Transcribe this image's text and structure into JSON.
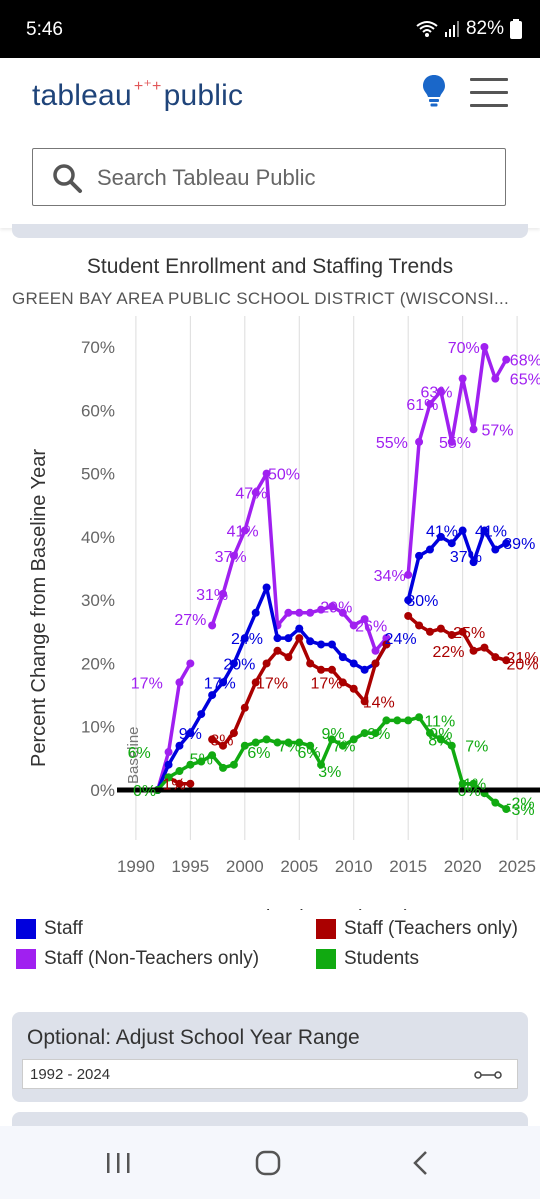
{
  "status": {
    "time": "5:46",
    "battery": "82%"
  },
  "header": {
    "logo_text": "tableau",
    "logo_text2": "public",
    "search_placeholder": "Search Tableau Public"
  },
  "chart_data": {
    "type": "line",
    "title": "Student Enrollment and Staffing Trends",
    "subtitle": "GREEN BAY AREA PUBLIC SCHOOL DISTRICT (WISCONSI...",
    "xlabel": "School Year (Start)",
    "ylabel": "Percent Change from Baseline Year",
    "xlim": [
      1989,
      2026
    ],
    "ylim": [
      -6,
      73
    ],
    "x_ticks": [
      1990,
      1995,
      2000,
      2005,
      2010,
      2015,
      2020,
      2025
    ],
    "y_ticks": [
      0,
      10,
      20,
      30,
      40,
      50,
      60,
      70
    ],
    "grid": "vertical",
    "baseline_label": "Baseline",
    "series": [
      {
        "name": "Staff (Non-Teachers only)",
        "color": "#a020f0",
        "segments": [
          {
            "x": [
              1992,
              1993,
              1994,
              1995
            ],
            "y": [
              0,
              6,
              17,
              20
            ]
          },
          {
            "x": [
              1997,
              1998,
              1999,
              2000,
              2001,
              2002,
              2003,
              2004,
              2005,
              2006,
              2007,
              2008,
              2009,
              2010,
              2011,
              2012,
              2013
            ],
            "y": [
              26,
              31,
              37,
              41,
              47,
              50,
              26,
              28,
              28,
              28,
              28.5,
              29,
              28,
              26,
              27,
              22,
              24
            ]
          },
          {
            "x": [
              2015,
              2016,
              2017,
              2018,
              2019,
              2020,
              2021,
              2022,
              2023,
              2024
            ],
            "y": [
              34,
              55,
              61,
              63,
              55,
              65,
              57,
              70,
              65,
              68
            ]
          }
        ],
        "labels": [
          {
            "x": 1991,
            "y": 17,
            "text": "17%"
          },
          {
            "x": 1995,
            "y": 27,
            "text": "27%"
          },
          {
            "x": 1997,
            "y": 31,
            "text": "31%"
          },
          {
            "x": 1998.7,
            "y": 37,
            "text": "37%"
          },
          {
            "x": 1999.8,
            "y": 41,
            "text": "41%"
          },
          {
            "x": 2000.6,
            "y": 47,
            "text": "47%"
          },
          {
            "x": 2003.6,
            "y": 50,
            "text": "50%"
          },
          {
            "x": 2008.4,
            "y": 29,
            "text": "29%"
          },
          {
            "x": 2011.6,
            "y": 26,
            "text": "26%"
          },
          {
            "x": 2013.3,
            "y": 34,
            "text": "34%"
          },
          {
            "x": 2013.5,
            "y": 55,
            "text": "55%"
          },
          {
            "x": 2016.3,
            "y": 61,
            "text": "61%"
          },
          {
            "x": 2017.6,
            "y": 63,
            "text": "63%"
          },
          {
            "x": 2019.3,
            "y": 55,
            "text": "55%"
          },
          {
            "x": 2020.1,
            "y": 70,
            "text": "70%"
          },
          {
            "x": 2023.2,
            "y": 57,
            "text": "57%"
          },
          {
            "x": 2025.8,
            "y": 65,
            "text": "65%"
          },
          {
            "x": 2025.8,
            "y": 68,
            "text": "68%"
          }
        ]
      },
      {
        "name": "Staff",
        "color": "#0000dd",
        "segments": [
          {
            "x": [
              1992,
              1993,
              1994,
              1995,
              1996,
              1997,
              1998,
              1999,
              2000,
              2001,
              2002,
              2003,
              2004,
              2005,
              2006,
              2007,
              2008,
              2009,
              2010,
              2011,
              2012,
              2013
            ],
            "y": [
              0,
              4,
              7,
              9,
              12,
              15,
              17,
              20,
              24,
              28,
              32,
              24,
              24,
              25.5,
              23.5,
              23,
              23,
              21,
              20,
              19,
              20,
              23
            ]
          },
          {
            "x": [
              2015,
              2016,
              2017,
              2018,
              2019,
              2020,
              2021,
              2022,
              2023,
              2024
            ],
            "y": [
              30,
              37,
              38,
              40,
              39,
              41,
              36,
              41,
              38,
              39
            ]
          }
        ],
        "labels": [
          {
            "x": 1995,
            "y": 9,
            "text": "9%"
          },
          {
            "x": 1997.7,
            "y": 17,
            "text": "17%"
          },
          {
            "x": 1999.5,
            "y": 20,
            "text": "20%"
          },
          {
            "x": 2000.2,
            "y": 24,
            "text": "24%"
          },
          {
            "x": 2014.3,
            "y": 24,
            "text": "24%"
          },
          {
            "x": 2016.3,
            "y": 30,
            "text": "30%"
          },
          {
            "x": 2018.1,
            "y": 41,
            "text": "41%"
          },
          {
            "x": 2020.3,
            "y": 37,
            "text": "37%"
          },
          {
            "x": 2022.6,
            "y": 41,
            "text": "41%"
          },
          {
            "x": 2025.2,
            "y": 39,
            "text": "39%"
          }
        ]
      },
      {
        "name": "Staff (Teachers only)",
        "color": "#aa0000",
        "segments": [
          {
            "x": [
              1993,
              1994,
              1995
            ],
            "y": [
              2,
              1,
              1
            ]
          },
          {
            "x": [
              1997,
              1998,
              1999,
              2000,
              2001,
              2002,
              2003,
              2004,
              2005,
              2006,
              2007,
              2008,
              2009,
              2010,
              2011,
              2012,
              2013
            ],
            "y": [
              8,
              7,
              9,
              13,
              17,
              20,
              22,
              21,
              24,
              20,
              19,
              19,
              17,
              16,
              14,
              20,
              23
            ]
          },
          {
            "x": [
              2015,
              2016,
              2017,
              2018,
              2019,
              2020,
              2021,
              2022,
              2023,
              2024
            ],
            "y": [
              27.5,
              26,
              25,
              25.5,
              24.5,
              25,
              22,
              22.5,
              21,
              20.5
            ]
          }
        ],
        "labels": [
          {
            "x": 1993.5,
            "y": 1,
            "text": "1%"
          },
          {
            "x": 1997.9,
            "y": 8,
            "text": "8%"
          },
          {
            "x": 2002.5,
            "y": 17,
            "text": "17%"
          },
          {
            "x": 2007.5,
            "y": 17,
            "text": "17%"
          },
          {
            "x": 2012.3,
            "y": 14,
            "text": "14%"
          },
          {
            "x": 2020.6,
            "y": 25,
            "text": "25%"
          },
          {
            "x": 2018.7,
            "y": 22,
            "text": "22%"
          },
          {
            "x": 2025.5,
            "y": 21,
            "text": "21%"
          },
          {
            "x": 2025.5,
            "y": 20,
            "text": "20%"
          }
        ]
      },
      {
        "name": "Students",
        "color": "#11aa11",
        "segments": [
          {
            "x": [
              1992,
              1993,
              1994,
              1995,
              1996,
              1997,
              1998,
              1999,
              2000,
              2001,
              2002,
              2003,
              2004,
              2005,
              2006,
              2007,
              2008,
              2009,
              2010,
              2011,
              2012,
              2013,
              2014,
              2015,
              2016,
              2017,
              2018,
              2019,
              2020,
              2021,
              2022,
              2023,
              2024
            ],
            "y": [
              0,
              2,
              3,
              4,
              4.5,
              5.5,
              3.5,
              4,
              7,
              7.5,
              8,
              7.5,
              7.5,
              7.5,
              7,
              4,
              8,
              7,
              8,
              9,
              9,
              11,
              11,
              11,
              11.5,
              9,
              8,
              7,
              1,
              1,
              -0.5,
              -2,
              -3
            ]
          }
        ],
        "labels": [
          {
            "x": 1990.3,
            "y": 6,
            "text": "6%"
          },
          {
            "x": 1990.8,
            "y": 0,
            "text": "0%"
          },
          {
            "x": 1996,
            "y": 5,
            "text": "5%"
          },
          {
            "x": 2001.3,
            "y": 6,
            "text": "6%"
          },
          {
            "x": 2004.1,
            "y": 7,
            "text": "7%"
          },
          {
            "x": 2005.9,
            "y": 6,
            "text": "6%"
          },
          {
            "x": 2008.1,
            "y": 9,
            "text": "9%"
          },
          {
            "x": 2007.8,
            "y": 3,
            "text": "3%"
          },
          {
            "x": 2009.1,
            "y": 7,
            "text": "7%"
          },
          {
            "x": 2012.3,
            "y": 9,
            "text": "9%"
          },
          {
            "x": 2017.9,
            "y": 11,
            "text": "11%"
          },
          {
            "x": 2018,
            "y": 9,
            "text": "9%"
          },
          {
            "x": 2017.9,
            "y": 8,
            "text": "8%"
          },
          {
            "x": 2021.3,
            "y": 7,
            "text": "7%"
          },
          {
            "x": 2021.1,
            "y": 1,
            "text": "1%"
          },
          {
            "x": 2020.6,
            "y": 0,
            "text": "0%"
          },
          {
            "x": 2025.3,
            "y": -2,
            "text": "-2%"
          },
          {
            "x": 2025.3,
            "y": -3,
            "text": "-3%"
          }
        ]
      }
    ]
  },
  "legend": {
    "staff": "Staff",
    "teachers": "Staff (Teachers only)",
    "nonteachers": "Staff (Non-Teachers only)",
    "students": "Students"
  },
  "filter": {
    "label": "Optional: Adjust School Year Range",
    "value": "1992 - 2024"
  }
}
